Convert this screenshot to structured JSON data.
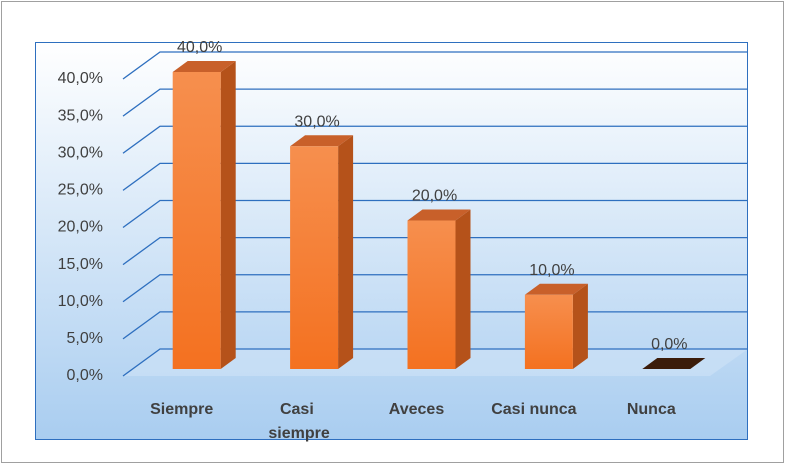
{
  "chart_data": {
    "type": "bar3d",
    "categories": [
      "Siempre",
      "Casi siempre",
      "Aveces",
      "Casi nunca",
      "Nunca"
    ],
    "values": [
      40,
      30,
      20,
      10,
      0
    ],
    "value_labels": [
      "40,0%",
      "30,0%",
      "20,0%",
      "10,0%",
      "0,0%"
    ],
    "color": "#f47a2a",
    "ylim": [
      0,
      40
    ],
    "yticks": [
      {
        "value": 0,
        "label": "0,0%"
      },
      {
        "value": 5,
        "label": "5,0%"
      },
      {
        "value": 10,
        "label": "10,0%"
      },
      {
        "value": 15,
        "label": "15,0%"
      },
      {
        "value": 20,
        "label": "20,0%"
      },
      {
        "value": 25,
        "label": "25,0%"
      },
      {
        "value": 30,
        "label": "30,0%"
      },
      {
        "value": 35,
        "label": "35,0%"
      },
      {
        "value": 40,
        "label": "40,0%"
      }
    ],
    "grid": true
  }
}
